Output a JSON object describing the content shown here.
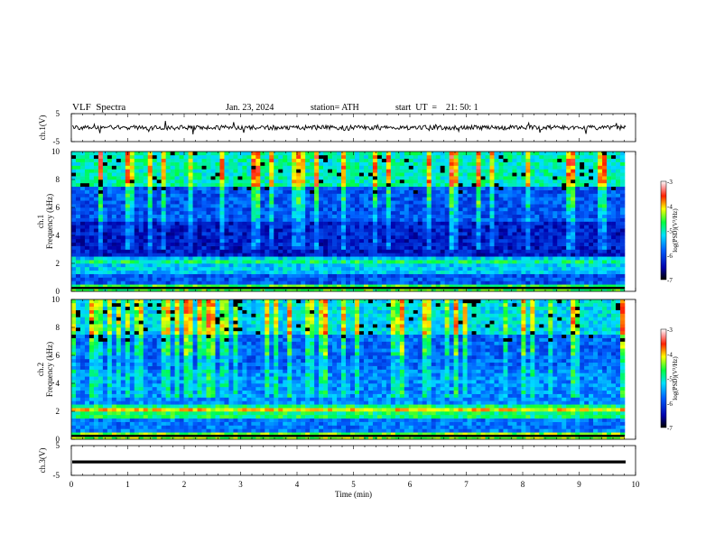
{
  "header": {
    "title": "VLF  Spectra",
    "date": "Jan. 23, 2024",
    "station": "station= ATH",
    "start": "start  UT  =    21: 50: 1"
  },
  "chart_data": [
    {
      "type": "line",
      "name": "ch1-waveform",
      "ylabel": "ch.1(V)",
      "ylim": [
        -5,
        5
      ],
      "yticks": [
        "5",
        "-5"
      ],
      "xlim": [
        0,
        10
      ]
    },
    {
      "type": "heatmap",
      "name": "ch1-spectrogram",
      "ylabel": "ch.1\nFrequency  (kHz)",
      "ylabel_top": "ch.1",
      "ylabel_main": "Frequency  (kHz)",
      "ylim": [
        0,
        10
      ],
      "yticks": [
        "0",
        "2",
        "4",
        "6",
        "8",
        "10"
      ],
      "xlim": [
        0,
        9.8
      ],
      "colorbar": {
        "label": "log(PSD)(V²/Hz)",
        "range": [
          -7,
          -3
        ],
        "ticks": [
          "-3",
          "-4",
          "-5",
          "-6",
          "-7"
        ]
      }
    },
    {
      "type": "heatmap",
      "name": "ch2-spectrogram",
      "ylabel_top": "ch.2",
      "ylabel_main": "Frequency  (kHz)",
      "ylim": [
        0,
        10
      ],
      "yticks": [
        "0",
        "2",
        "4",
        "6",
        "8",
        "10"
      ],
      "xlim": [
        0,
        9.8
      ],
      "colorbar": {
        "label": "log(PSD)(V²/Hz)",
        "range": [
          -7,
          -3
        ],
        "ticks": [
          "-3",
          "-4",
          "-5",
          "-6",
          "-7"
        ]
      }
    },
    {
      "type": "line",
      "name": "ch3-waveform",
      "ylabel": "ch.3(V)",
      "ylim": [
        -5,
        5
      ],
      "yticks": [
        "5",
        "-5"
      ],
      "xlim": [
        0,
        10
      ],
      "xlabel": "Time  (min)",
      "xticks": [
        "0",
        "1",
        "2",
        "3",
        "4",
        "5",
        "6",
        "7",
        "8",
        "9",
        "10"
      ]
    }
  ]
}
